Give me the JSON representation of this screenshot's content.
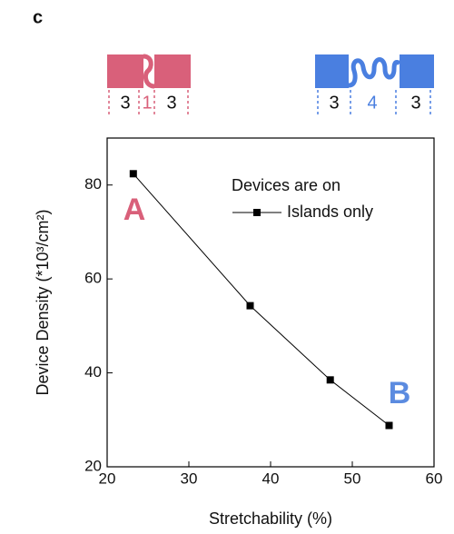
{
  "chart_data": {
    "type": "line",
    "panel_label": "c",
    "schematic_labels": {
      "left": [
        "3",
        "1",
        "3"
      ],
      "right": [
        "3",
        "4",
        "3"
      ]
    },
    "xlabel": "Stretchability (%)",
    "ylabel": "Device Density (*10³/cm²)",
    "legend_title": "Devices are on",
    "x": [
      23.2,
      37.5,
      47.3,
      54.5
    ],
    "series": [
      {
        "name": "Islands only",
        "color": "#000000",
        "values": [
          82.4,
          54.3,
          38.5,
          28.8
        ]
      }
    ],
    "annotations": [
      {
        "text": "A",
        "color": "#d9607a"
      },
      {
        "text": "B",
        "color": "#5b8be0"
      }
    ],
    "xlim": [
      20,
      60
    ],
    "xticks": [
      20,
      30,
      40,
      50,
      60
    ],
    "ylim": [
      20,
      90
    ],
    "yticks": [
      20,
      40,
      60,
      80
    ]
  }
}
